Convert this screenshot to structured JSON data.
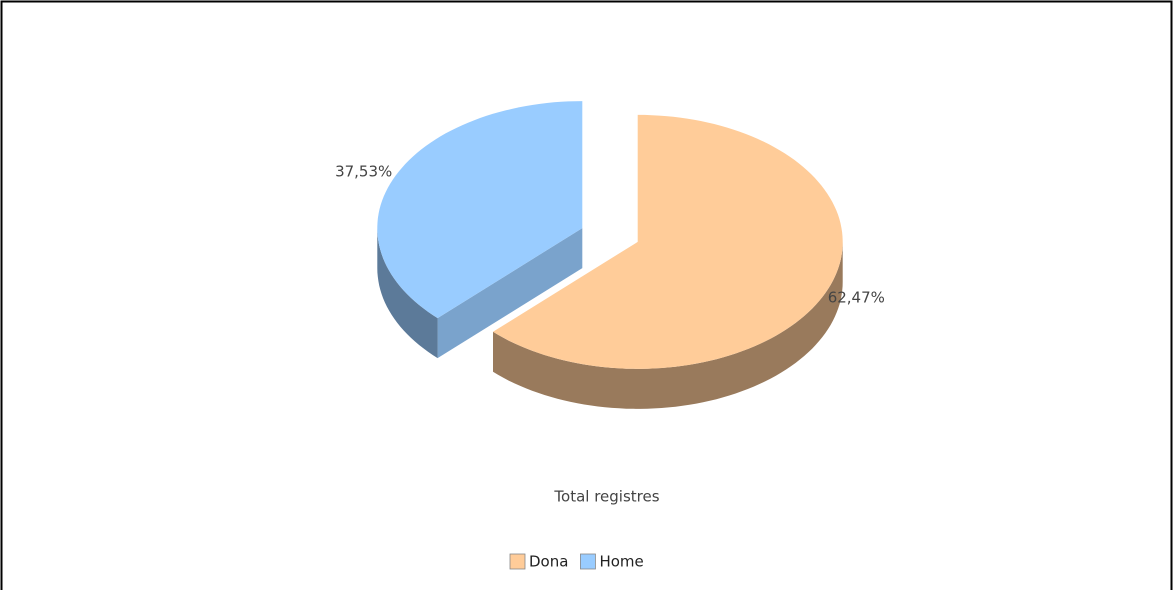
{
  "chart_data": {
    "type": "pie",
    "title": "Total registres",
    "categories": [
      "Dona",
      "Home"
    ],
    "values": [
      62.47,
      37.53
    ],
    "value_labels": [
      "62,47%",
      "37,53%"
    ],
    "colors": [
      "#ffcc99",
      "#99ccff"
    ],
    "legend": "bottom",
    "three_d": true
  }
}
